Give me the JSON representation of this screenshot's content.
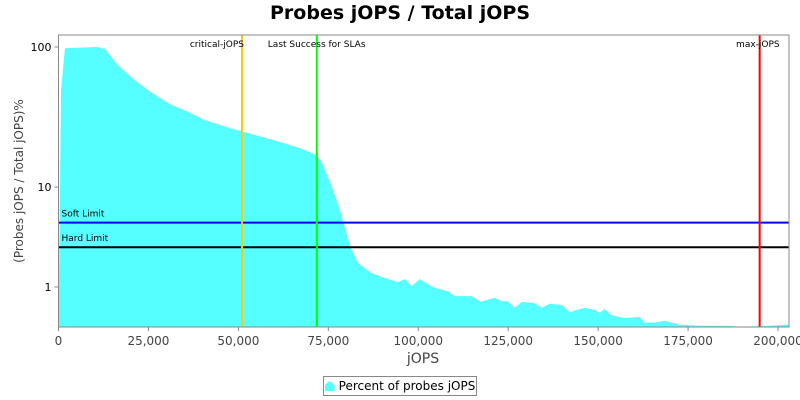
{
  "chart_data": {
    "type": "area",
    "title": "Probes jOPS / Total jOPS",
    "xlabel": "jOPS",
    "ylabel": "(Probes jOPS / Total jOPS)%",
    "xlim": [
      0,
      203000
    ],
    "ylim": [
      0.4,
      120
    ],
    "yscale": "log",
    "x_ticks": [
      0,
      25000,
      50000,
      75000,
      100000,
      125000,
      150000,
      175000,
      200000
    ],
    "x_tick_labels": [
      "0",
      "25,000",
      "50,000",
      "75,000",
      "100,000",
      "125,000",
      "150,000",
      "175,000",
      "200,000"
    ],
    "y_ticks": [
      1,
      10,
      100
    ],
    "y_tick_labels": [
      "1",
      "10",
      "100"
    ],
    "series": [
      {
        "name": "Percent of probes jOPS",
        "color": "#55ffff",
        "x": [
          0,
          700,
          1800,
          10700,
          12900,
          16500,
          21200,
          25400,
          31000,
          36500,
          40700,
          46300,
          50700,
          56000,
          61500,
          67000,
          71500,
          73200,
          76000,
          78200,
          81000,
          83200,
          87000,
          90700,
          94300,
          96300,
          98200,
          100400,
          104000,
          108800,
          110000,
          114800,
          117400,
          121300,
          123200,
          124900,
          126800,
          128800,
          132400,
          134300,
          136500,
          139900,
          142100,
          146300,
          149000,
          150400,
          151800,
          153800,
          157400,
          161500,
          163000,
          165700,
          168500,
          172600,
          178200,
          186500,
          189300,
          197600,
          202900
        ],
        "y": [
          0.4,
          49,
          98,
          100,
          97,
          74,
          58,
          48,
          39,
          34,
          30,
          27,
          25,
          23,
          21,
          19,
          17,
          15,
          10,
          5.9,
          2.6,
          1.74,
          1.38,
          1.23,
          1.12,
          1.2,
          1.02,
          1.2,
          1.0,
          0.89,
          0.81,
          0.81,
          0.71,
          0.78,
          0.72,
          0.72,
          0.62,
          0.71,
          0.69,
          0.62,
          0.68,
          0.66,
          0.56,
          0.62,
          0.59,
          0.55,
          0.6,
          0.52,
          0.49,
          0.5,
          0.44,
          0.44,
          0.46,
          0.42,
          0.41,
          0.41,
          0.4,
          0.41,
          0.42
        ]
      }
    ],
    "hlines": [
      {
        "label": "Soft Limit",
        "value": 4.4,
        "color": "#0000ff"
      },
      {
        "label": "Hard Limit",
        "value": 2.5,
        "color": "#000000"
      }
    ],
    "vlines": [
      {
        "label": "critical-jOPS",
        "value": 51000,
        "color": "#ffc800"
      },
      {
        "label": "Last Success for SLAs",
        "value": 71800,
        "color": "#00ff00"
      },
      {
        "label": "max-jOPS",
        "value": 194900,
        "color": "#ff0000"
      }
    ],
    "legend": {
      "label": "Percent of probes jOPS",
      "position": "bottom"
    },
    "grid": false
  }
}
